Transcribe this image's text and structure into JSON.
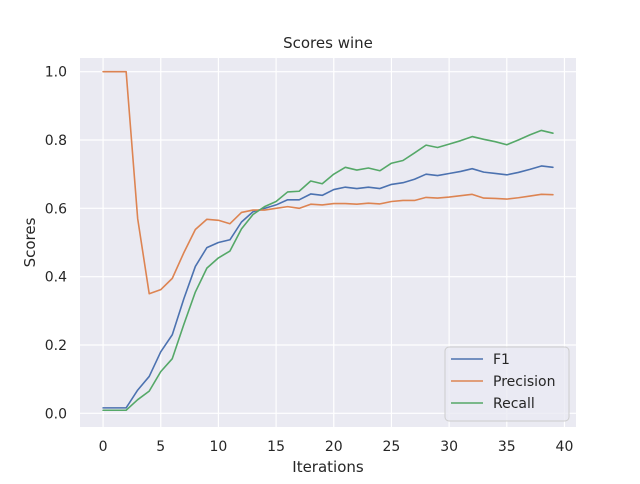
{
  "chart_data": {
    "type": "line",
    "title": "Scores wine",
    "xlabel": "Iterations",
    "ylabel": "Scores",
    "xlim": [
      -2,
      41
    ],
    "ylim": [
      -0.04,
      1.04
    ],
    "xticks": [
      0,
      5,
      10,
      15,
      20,
      25,
      30,
      35,
      40
    ],
    "yticks": [
      0.0,
      0.2,
      0.4,
      0.6,
      0.8,
      1.0
    ],
    "xtick_labels": [
      "0",
      "5",
      "10",
      "15",
      "20",
      "25",
      "30",
      "35",
      "40"
    ],
    "ytick_labels": [
      "0.0",
      "0.2",
      "0.4",
      "0.6",
      "0.8",
      "1.0"
    ],
    "grid": true,
    "legend_position": "lower-right",
    "x": [
      0,
      1,
      2,
      3,
      4,
      5,
      6,
      7,
      8,
      9,
      10,
      11,
      12,
      13,
      14,
      15,
      16,
      17,
      18,
      19,
      20,
      21,
      22,
      23,
      24,
      25,
      26,
      27,
      28,
      29,
      30,
      31,
      32,
      33,
      34,
      35,
      36,
      37,
      38,
      39
    ],
    "series": [
      {
        "name": "F1",
        "color": "#4c72b0",
        "values": [
          0.016,
          0.016,
          0.016,
          0.068,
          0.108,
          0.18,
          0.23,
          0.335,
          0.43,
          0.485,
          0.5,
          0.508,
          0.56,
          0.59,
          0.6,
          0.61,
          0.625,
          0.625,
          0.642,
          0.638,
          0.655,
          0.662,
          0.658,
          0.662,
          0.658,
          0.67,
          0.675,
          0.685,
          0.7,
          0.696,
          0.702,
          0.708,
          0.716,
          0.706,
          0.702,
          0.698,
          0.705,
          0.714,
          0.724,
          0.72
        ]
      },
      {
        "name": "Precision",
        "color": "#dd8452",
        "values": [
          1.0,
          1.0,
          1.0,
          0.57,
          0.35,
          0.362,
          0.395,
          0.47,
          0.538,
          0.568,
          0.565,
          0.555,
          0.588,
          0.595,
          0.595,
          0.6,
          0.605,
          0.6,
          0.612,
          0.61,
          0.614,
          0.614,
          0.612,
          0.615,
          0.613,
          0.62,
          0.623,
          0.623,
          0.632,
          0.63,
          0.633,
          0.637,
          0.641,
          0.63,
          0.629,
          0.627,
          0.631,
          0.636,
          0.641,
          0.64
        ]
      },
      {
        "name": "Recall",
        "color": "#55a868",
        "values": [
          0.009,
          0.009,
          0.009,
          0.04,
          0.065,
          0.122,
          0.16,
          0.26,
          0.355,
          0.425,
          0.455,
          0.475,
          0.54,
          0.582,
          0.605,
          0.62,
          0.648,
          0.65,
          0.68,
          0.672,
          0.7,
          0.72,
          0.712,
          0.718,
          0.71,
          0.732,
          0.74,
          0.762,
          0.785,
          0.778,
          0.788,
          0.798,
          0.81,
          0.802,
          0.795,
          0.786,
          0.8,
          0.815,
          0.828,
          0.82
        ]
      }
    ]
  }
}
